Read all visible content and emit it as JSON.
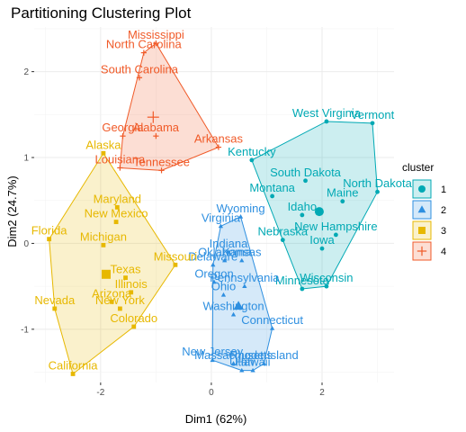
{
  "chart_data": {
    "type": "scatter",
    "title": "Partitioning Clustering Plot",
    "xlabel": "Dim1 (62%)",
    "ylabel": "Dim2 (24.7%)",
    "xlim": [
      -3.2,
      3.3
    ],
    "ylim": [
      -1.62,
      2.52
    ],
    "xticks": [
      -2,
      0,
      2
    ],
    "yticks": [
      -1,
      0,
      1,
      2
    ],
    "xtick_labels": [
      "-2",
      "0",
      "2"
    ],
    "ytick_labels": [
      "-1",
      "0",
      "1",
      "2"
    ],
    "grid": true,
    "legend": {
      "title": "cluster",
      "position": "right",
      "entries": [
        "1",
        "2",
        "3",
        "4"
      ]
    },
    "series": [
      {
        "name": "1",
        "color": "#00A9B4",
        "marker": "circle",
        "centroid": [
          1.95,
          0.37
        ],
        "points": [
          {
            "label": "West Virginia",
            "x": 2.08,
            "y": 1.42
          },
          {
            "label": "Vermont",
            "x": 2.91,
            "y": 1.4
          },
          {
            "label": "Kentucky",
            "x": 0.73,
            "y": 0.97
          },
          {
            "label": "South Dakota",
            "x": 1.7,
            "y": 0.73
          },
          {
            "label": "North Dakota",
            "x": 3.0,
            "y": 0.6
          },
          {
            "label": "Montana",
            "x": 1.1,
            "y": 0.55
          },
          {
            "label": "Maine",
            "x": 2.37,
            "y": 0.49
          },
          {
            "label": "Idaho",
            "x": 1.64,
            "y": 0.33
          },
          {
            "label": "New Hampshire",
            "x": 2.25,
            "y": 0.1
          },
          {
            "label": "Nebraska",
            "x": 1.29,
            "y": 0.04
          },
          {
            "label": "Iowa",
            "x": 2.0,
            "y": -0.06
          },
          {
            "label": "Minnesota",
            "x": 1.64,
            "y": -0.53
          },
          {
            "label": "Wisconsin",
            "x": 2.08,
            "y": -0.5
          }
        ]
      },
      {
        "name": "2",
        "color": "#2E8FE0",
        "marker": "triangle",
        "centroid": [
          0.49,
          -0.73
        ],
        "points": [
          {
            "label": "Wyoming",
            "x": 0.53,
            "y": 0.31
          },
          {
            "label": "Virginia",
            "x": 0.17,
            "y": 0.2
          },
          {
            "label": "Indiana",
            "x": 0.31,
            "y": -0.1
          },
          {
            "label": "Oklahoma",
            "x": 0.24,
            "y": -0.2
          },
          {
            "label": "Kansas",
            "x": 0.55,
            "y": -0.2
          },
          {
            "label": "Delaware",
            "x": 0.03,
            "y": -0.25
          },
          {
            "label": "Oregon",
            "x": 0.05,
            "y": -0.45
          },
          {
            "label": "Pennsylvania",
            "x": 0.6,
            "y": -0.5
          },
          {
            "label": "Ohio",
            "x": 0.22,
            "y": -0.6
          },
          {
            "label": "Washington",
            "x": 0.4,
            "y": -0.83
          },
          {
            "label": "Connecticut",
            "x": 1.1,
            "y": -0.99
          },
          {
            "label": "New Jersey",
            "x": 0.02,
            "y": -1.36
          },
          {
            "label": "Massachusetts",
            "x": 0.4,
            "y": -1.4
          },
          {
            "label": "Rhode Island",
            "x": 0.95,
            "y": -1.4
          },
          {
            "label": "Utah",
            "x": 0.55,
            "y": -1.48
          },
          {
            "label": "Hawaii",
            "x": 0.75,
            "y": -1.48
          }
        ]
      },
      {
        "name": "3",
        "color": "#E7B800",
        "marker": "square",
        "centroid": [
          -1.9,
          -0.36
        ],
        "points": [
          {
            "label": "Alaska",
            "x": -1.95,
            "y": 1.05
          },
          {
            "label": "Maryland",
            "x": -1.7,
            "y": 0.42
          },
          {
            "label": "New Mexico",
            "x": -1.72,
            "y": 0.25
          },
          {
            "label": "Florida",
            "x": -2.93,
            "y": 0.05
          },
          {
            "label": "Michigan",
            "x": -1.95,
            "y": -0.02
          },
          {
            "label": "Missouri",
            "x": -0.65,
            "y": -0.25
          },
          {
            "label": "Texas",
            "x": -1.55,
            "y": -0.4
          },
          {
            "label": "Illinois",
            "x": -1.45,
            "y": -0.57
          },
          {
            "label": "Arizona",
            "x": -1.8,
            "y": -0.68
          },
          {
            "label": "New York",
            "x": -1.65,
            "y": -0.76
          },
          {
            "label": "Colorado",
            "x": -1.4,
            "y": -0.97
          },
          {
            "label": "Nevada",
            "x": -2.83,
            "y": -0.76
          },
          {
            "label": "California",
            "x": -2.5,
            "y": -1.52
          }
        ]
      },
      {
        "name": "4",
        "color": "#F05A28",
        "marker": "cross",
        "centroid": [
          -1.05,
          1.47
        ],
        "points": [
          {
            "label": "Mississippi",
            "x": -1.0,
            "y": 2.33
          },
          {
            "label": "North Carolina",
            "x": -1.22,
            "y": 2.22
          },
          {
            "label": "South Carolina",
            "x": -1.3,
            "y": 1.93
          },
          {
            "label": "Georgia",
            "x": -1.6,
            "y": 1.25
          },
          {
            "label": "Alabama",
            "x": -1.0,
            "y": 1.25
          },
          {
            "label": "Arkansas",
            "x": 0.13,
            "y": 1.12
          },
          {
            "label": "Louisiana",
            "x": -1.65,
            "y": 0.88
          },
          {
            "label": "Tennessee",
            "x": -0.9,
            "y": 0.85
          }
        ]
      }
    ]
  }
}
